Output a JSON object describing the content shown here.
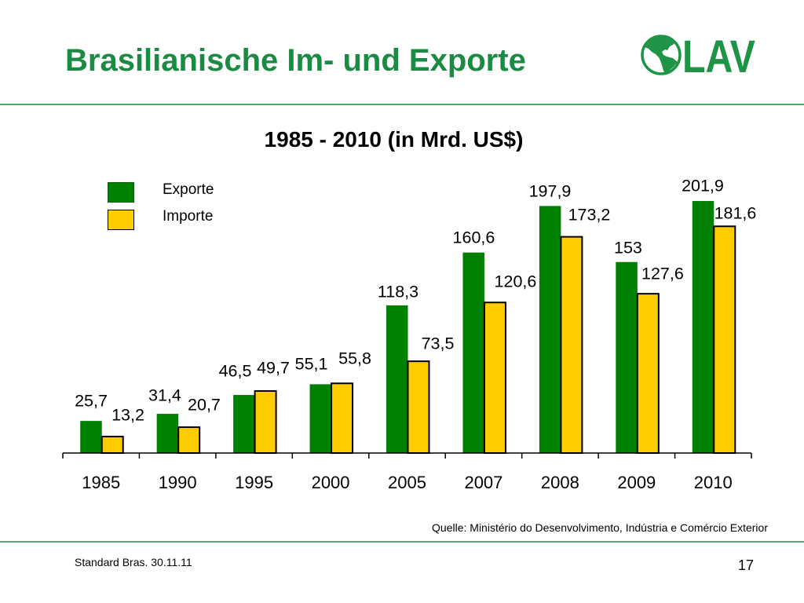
{
  "slide": {
    "title": "Brasilianische Im- und Exporte",
    "source": "Quelle: Ministério do Desenvolvimento, Indústria e Comércio Exterior",
    "footer": "Standard Bras. 30.11.11",
    "page_number": "17"
  },
  "logo": {
    "text": "LAV",
    "icon": "globe-americas-icon"
  },
  "colors": {
    "title_green": "#1b8a43",
    "logo_green": "#1f9447",
    "rule_line": "#5aa46e"
  },
  "chart_data": {
    "type": "bar",
    "title": "1985 - 2010 (in Mrd. US$)",
    "categories": [
      "1985",
      "1990",
      "1995",
      "2000",
      "2005",
      "2007",
      "2008",
      "2009",
      "2010"
    ],
    "series": [
      {
        "name": "Exporte",
        "color": "#008000",
        "values": [
          25.7,
          31.4,
          46.5,
          55.1,
          118.3,
          160.6,
          197.9,
          153,
          201.9
        ],
        "labels": [
          "25,7",
          "31,4",
          "46,5",
          "55,1",
          "118,3",
          "160,6",
          "197,9",
          "153",
          "201,9"
        ]
      },
      {
        "name": "Importe",
        "color": "#ffcc00",
        "values": [
          13.2,
          20.7,
          49.7,
          55.8,
          73.5,
          120.6,
          173.2,
          127.6,
          181.6
        ],
        "labels": [
          "13,2",
          "20,7",
          "49,7",
          "55,8",
          "73,5",
          "120,6",
          "173,2",
          "127,6",
          "181,6"
        ]
      }
    ],
    "legend": "top-left",
    "grid": false
  }
}
